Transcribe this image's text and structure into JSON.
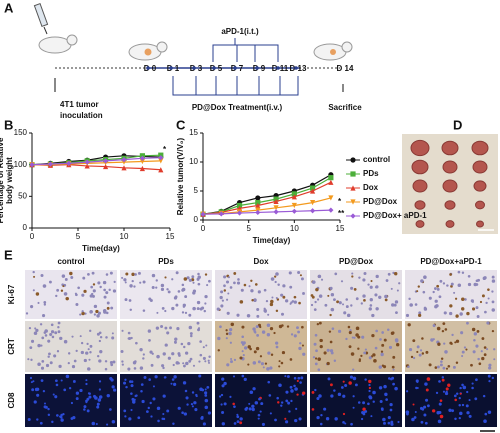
{
  "schematic": {
    "label": "A",
    "inoculation": [
      "4T1 tumor",
      "inoculation"
    ],
    "injection": "aPD-1(i.t.)",
    "days": [
      "D 0",
      "D 1",
      "D 3",
      "D 5",
      "D 7",
      "D 9",
      "D 11",
      "D 13",
      "D 14"
    ],
    "treatment": "PD@Dox Treatment(i.v.)",
    "end": "Sacrifice"
  },
  "chart_data": [
    {
      "type": "line",
      "label": "B",
      "ylabel": [
        "Percentage of Relative",
        "body weight"
      ],
      "xlabel": "Time(day)",
      "x": [
        0,
        2,
        4,
        6,
        8,
        10,
        12,
        14
      ],
      "xlim": [
        0,
        15
      ],
      "xticks": [
        0,
        5,
        10,
        15
      ],
      "ylim": [
        0,
        150
      ],
      "yticks": [
        0,
        50,
        100,
        150
      ],
      "annotations": [
        "*"
      ],
      "series": [
        {
          "color": "#111111",
          "marker": "circle",
          "values": [
            100,
            102,
            105,
            107,
            112,
            114,
            113,
            112
          ]
        },
        {
          "color": "#4caf3a",
          "marker": "square",
          "values": [
            100,
            101,
            103,
            106,
            108,
            110,
            114,
            115
          ]
        },
        {
          "color": "#e03c2c",
          "marker": "triangle",
          "values": [
            100,
            99,
            100,
            98,
            97,
            95,
            94,
            92
          ]
        },
        {
          "color": "#f39a1e",
          "marker": "down",
          "values": [
            100,
            100,
            101,
            102,
            103,
            104,
            105,
            106
          ]
        },
        {
          "color": "#9a5bd6",
          "marker": "diamond",
          "values": [
            100,
            101,
            102,
            104,
            106,
            108,
            110,
            111
          ]
        }
      ]
    },
    {
      "type": "line",
      "label": "C",
      "ylabel": [
        "Relative tumor(V/V₀)"
      ],
      "xlabel": "Time(day)",
      "x": [
        0,
        2,
        4,
        6,
        8,
        10,
        12,
        14
      ],
      "xlim": [
        0,
        15
      ],
      "xticks": [
        0,
        5,
        10,
        15
      ],
      "ylim": [
        0,
        15
      ],
      "yticks": [
        0,
        5,
        10,
        15
      ],
      "annotations": [
        "*",
        "**"
      ],
      "series": [
        {
          "name": "control",
          "color": "#111111",
          "marker": "circle",
          "values": [
            1,
            1.5,
            3,
            3.8,
            4.2,
            5,
            6,
            7.8
          ]
        },
        {
          "name": "PDs",
          "color": "#4caf3a",
          "marker": "square",
          "values": [
            1,
            1.4,
            2.5,
            3,
            3.6,
            4.5,
            5.5,
            7.3
          ]
        },
        {
          "name": "Dox",
          "color": "#e03c2c",
          "marker": "triangle",
          "values": [
            1,
            1.3,
            2,
            2.5,
            3.2,
            4,
            5,
            6.5
          ]
        },
        {
          "name": "PD@Dox",
          "color": "#f39a1e",
          "marker": "down",
          "values": [
            1,
            1.1,
            1.4,
            1.7,
            2.1,
            2.5,
            3,
            3.8
          ]
        },
        {
          "name": "PD@Dox+ aPD-1",
          "color": "#9a5bd6",
          "marker": "diamond",
          "values": [
            1,
            1.05,
            1.2,
            1.3,
            1.4,
            1.5,
            1.6,
            1.7
          ]
        }
      ]
    }
  ],
  "panel_d": {
    "label": "D"
  },
  "panel_e": {
    "label": "E",
    "columns": [
      "control",
      "PDs",
      "Dox",
      "PD@Dox",
      "PD@Dox+aPD-1"
    ],
    "rows": [
      "Ki-67",
      "CRT",
      "CD8"
    ]
  }
}
